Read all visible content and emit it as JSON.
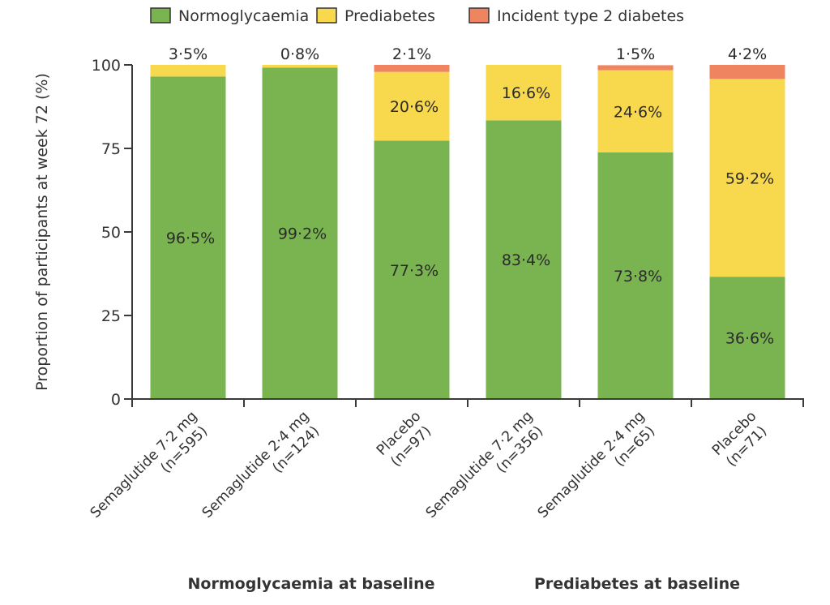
{
  "chart_data": {
    "type": "bar",
    "stacked": true,
    "title": "",
    "xlabel": "",
    "ylabel": "Proportion of participants at week 72 (%)",
    "ylim": [
      0,
      100
    ],
    "yticks": [
      "0",
      "25",
      "50",
      "75",
      "100"
    ],
    "grid": false,
    "legend_position": "top-center",
    "categories": [
      {
        "line1": "Semaglutide 7·2 mg",
        "line2": "(n=595)"
      },
      {
        "line1": "Semaglutide 2·4 mg",
        "line2": "(n=124)"
      },
      {
        "line1": "Placebo",
        "line2": "(n=97)"
      },
      {
        "line1": "Semaglutide 7·2 mg",
        "line2": "(n=356)"
      },
      {
        "line1": "Semaglutide 2·4 mg",
        "line2": "(n=65)"
      },
      {
        "line1": "Placebo",
        "line2": "(n=71)"
      }
    ],
    "groups": [
      {
        "label": "Normoglycaemia at baseline",
        "category_indices": [
          0,
          1,
          2
        ]
      },
      {
        "label": "Prediabetes at baseline",
        "category_indices": [
          3,
          4,
          5
        ]
      }
    ],
    "series": [
      {
        "name": "Normoglycaemia",
        "color": "#7AB450",
        "values": [
          96.5,
          99.2,
          77.3,
          83.4,
          73.8,
          36.6
        ],
        "labels": [
          "96·5%",
          "99·2%",
          "77·3%",
          "83·4%",
          "73·8%",
          "36·6%"
        ]
      },
      {
        "name": "Prediabetes",
        "color": "#F8D84C",
        "values": [
          3.5,
          0.8,
          20.6,
          16.6,
          24.6,
          59.2
        ],
        "labels": [
          "3·5%",
          "0·8%",
          "20·6%",
          "16·6%",
          "24·6%",
          "59·2%"
        ],
        "label_outside_top": [
          true,
          true,
          false,
          false,
          false,
          false
        ]
      },
      {
        "name": "Incident type 2 diabetes",
        "color": "#EE8560",
        "values": [
          0,
          0,
          2.1,
          0,
          1.5,
          4.2
        ],
        "labels": [
          "",
          "",
          "2·1%",
          "",
          "1·5%",
          "4·2%"
        ],
        "label_outside_top": [
          false,
          false,
          true,
          false,
          true,
          true
        ]
      }
    ]
  }
}
